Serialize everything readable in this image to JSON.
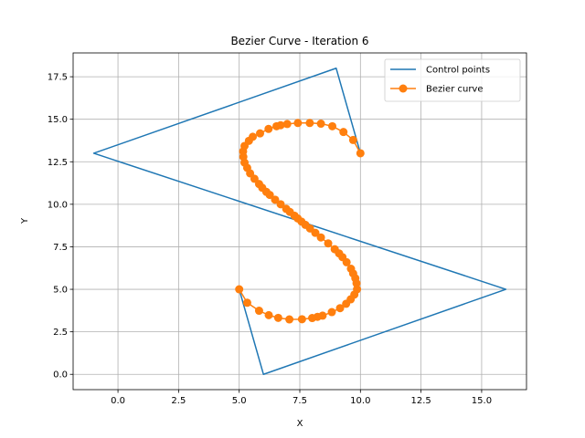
{
  "chart_data": {
    "type": "line",
    "title": "Bezier Curve - Iteration 6",
    "xlabel": "X",
    "ylabel": "Y",
    "xlim": [
      -1.85,
      16.85
    ],
    "ylim": [
      -0.9,
      18.9
    ],
    "xticks": [
      0.0,
      2.5,
      5.0,
      7.5,
      10.0,
      12.5,
      15.0
    ],
    "xtick_labels": [
      "0.0",
      "2.5",
      "5.0",
      "7.5",
      "10.0",
      "12.5",
      "15.0"
    ],
    "yticks": [
      0.0,
      2.5,
      5.0,
      7.5,
      10.0,
      12.5,
      15.0,
      17.5
    ],
    "ytick_labels": [
      "0.0",
      "2.5",
      "5.0",
      "7.5",
      "10.0",
      "12.5",
      "15.0",
      "17.5"
    ],
    "grid": true,
    "legend_position": "top-right",
    "series": [
      {
        "name": "Control points",
        "color": "#1f77b4",
        "marker": "none",
        "points": [
          [
            10,
            13
          ],
          [
            9,
            18
          ],
          [
            -1,
            13
          ],
          [
            16,
            5
          ],
          [
            6,
            0
          ],
          [
            5,
            5
          ]
        ]
      },
      {
        "name": "Bezier curve",
        "color": "#ff7f0e",
        "marker": "circle",
        "points": [
          [
            10.0,
            13.0
          ],
          [
            9.7,
            13.78
          ],
          [
            9.3,
            14.25
          ],
          [
            8.84,
            14.59
          ],
          [
            8.37,
            14.74
          ],
          [
            7.91,
            14.78
          ],
          [
            7.42,
            14.78
          ],
          [
            6.98,
            14.72
          ],
          [
            6.71,
            14.65
          ],
          [
            6.54,
            14.59
          ],
          [
            6.21,
            14.43
          ],
          [
            5.86,
            14.17
          ],
          [
            5.56,
            13.97
          ],
          [
            5.4,
            13.73
          ],
          [
            5.22,
            13.43
          ],
          [
            5.16,
            13.11
          ],
          [
            5.17,
            12.79
          ],
          [
            5.22,
            12.45
          ],
          [
            5.33,
            12.14
          ],
          [
            5.45,
            11.82
          ],
          [
            5.63,
            11.5
          ],
          [
            5.82,
            11.19
          ],
          [
            5.95,
            10.97
          ],
          [
            6.12,
            10.73
          ],
          [
            6.26,
            10.55
          ],
          [
            6.48,
            10.27
          ],
          [
            6.71,
            10.0
          ],
          [
            6.94,
            9.73
          ],
          [
            7.09,
            9.55
          ],
          [
            7.28,
            9.33
          ],
          [
            7.41,
            9.17
          ],
          [
            7.57,
            8.98
          ],
          [
            7.73,
            8.79
          ],
          [
            7.92,
            8.58
          ],
          [
            8.14,
            8.32
          ],
          [
            8.37,
            8.05
          ],
          [
            8.67,
            7.7
          ],
          [
            8.94,
            7.36
          ],
          [
            9.12,
            7.11
          ],
          [
            9.26,
            6.89
          ],
          [
            9.43,
            6.59
          ],
          [
            9.61,
            6.21
          ],
          [
            9.7,
            5.93
          ],
          [
            9.79,
            5.65
          ],
          [
            9.84,
            5.35
          ],
          [
            9.86,
            5.0
          ],
          [
            9.75,
            4.69
          ],
          [
            9.6,
            4.41
          ],
          [
            9.41,
            4.15
          ],
          [
            9.16,
            3.89
          ],
          [
            8.82,
            3.66
          ],
          [
            8.44,
            3.45
          ],
          [
            8.23,
            3.38
          ],
          [
            8.01,
            3.31
          ],
          [
            7.59,
            3.24
          ],
          [
            7.07,
            3.23
          ],
          [
            6.61,
            3.32
          ],
          [
            6.22,
            3.48
          ],
          [
            5.82,
            3.74
          ],
          [
            5.33,
            4.21
          ],
          [
            5.0,
            5.0
          ]
        ]
      }
    ]
  }
}
